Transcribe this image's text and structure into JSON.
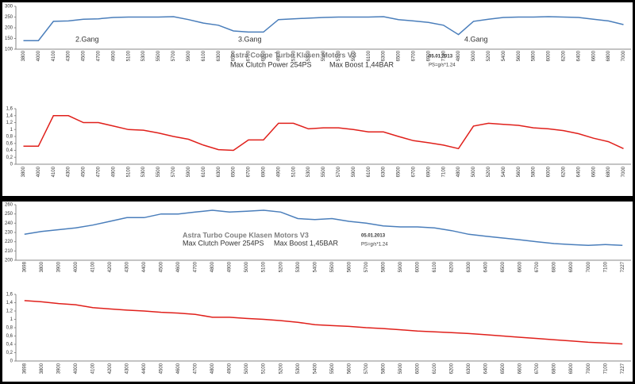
{
  "chart_data": [
    {
      "type": "line",
      "categories": [
        "3800",
        "4000",
        "4100",
        "4300",
        "4500",
        "4700",
        "4900",
        "5100",
        "5300",
        "5500",
        "5700",
        "5900",
        "6100",
        "6300",
        "6500",
        "6700",
        "6900",
        "4900",
        "5100",
        "5300",
        "5500",
        "5700",
        "5900",
        "6100",
        "6300",
        "6500",
        "6700",
        "6900",
        "7100",
        "4800",
        "5000",
        "5200",
        "5400",
        "5600",
        "5800",
        "6000",
        "6200",
        "6400",
        "6600",
        "6800",
        "7000"
      ],
      "series": [
        {
          "name": "Max Clutch Power 254PS",
          "color": "#4a7ebb",
          "values": [
            140,
            140,
            230,
            232,
            240,
            242,
            248,
            250,
            250,
            250,
            252,
            238,
            222,
            212,
            185,
            180,
            180,
            238,
            242,
            245,
            248,
            250,
            250,
            250,
            252,
            238,
            232,
            225,
            212,
            168,
            230,
            240,
            248,
            250,
            250,
            252,
            250,
            248,
            240,
            232,
            215
          ]
        }
      ],
      "ylim": [
        100,
        300
      ],
      "yticks": [
        100,
        150,
        200,
        250,
        300
      ],
      "annotations": [
        {
          "text": "2.Gang",
          "color": "#000000"
        },
        {
          "text": "3.Gang",
          "color": "#000000"
        },
        {
          "text": "4.Gang",
          "color": "#000000"
        },
        {
          "text": "Astra Coupe Turbo Klasen Motors V3",
          "color": "#7f7f7f"
        },
        {
          "text": "Max Boost 1,44BAR",
          "color": "#e0201b"
        },
        {
          "text": "05.01.2013",
          "color": "#000000"
        },
        {
          "text": "PS=g/s*1.24",
          "color": "#2030c0"
        }
      ]
    },
    {
      "type": "line",
      "categories": [
        "3800",
        "4000",
        "4100",
        "4300",
        "4500",
        "4700",
        "4900",
        "5100",
        "5300",
        "5500",
        "5700",
        "5900",
        "6100",
        "6300",
        "6500",
        "6700",
        "6900",
        "4900",
        "5100",
        "5300",
        "5500",
        "5700",
        "5900",
        "6100",
        "6300",
        "6500",
        "6700",
        "6900",
        "7100",
        "4800",
        "5000",
        "5200",
        "5400",
        "5600",
        "5800",
        "6000",
        "6200",
        "6400",
        "6600",
        "6800",
        "7000"
      ],
      "series": [
        {
          "name": "Boost",
          "color": "#e0201b",
          "values": [
            0.52,
            0.52,
            1.4,
            1.4,
            1.2,
            1.2,
            1.1,
            1.0,
            0.98,
            0.9,
            0.8,
            0.72,
            0.55,
            0.42,
            0.4,
            0.7,
            0.7,
            1.18,
            1.18,
            1.02,
            1.05,
            1.05,
            1.0,
            0.93,
            0.93,
            0.8,
            0.68,
            0.62,
            0.55,
            0.45,
            1.1,
            1.18,
            1.15,
            1.12,
            1.05,
            1.02,
            0.97,
            0.88,
            0.75,
            0.65,
            0.45
          ]
        }
      ],
      "ylim": [
        0,
        1.6
      ],
      "yticks": [
        0,
        {
          "value": 0.2,
          "label": "0,2"
        },
        {
          "value": 0.4,
          "label": "0,4"
        },
        {
          "value": 0.6,
          "label": "0,6"
        },
        {
          "value": 0.8,
          "label": "0,8"
        },
        1,
        {
          "value": 1.2,
          "label": "1,2"
        },
        {
          "value": 1.4,
          "label": "1,4"
        },
        {
          "value": 1.6,
          "label": "1,6"
        }
      ]
    },
    {
      "type": "line",
      "categories": [
        "3698",
        "3800",
        "3900",
        "4000",
        "4100",
        "4200",
        "4300",
        "4400",
        "4500",
        "4600",
        "4700",
        "4800",
        "4900",
        "5000",
        "5100",
        "5200",
        "5300",
        "5400",
        "5500",
        "5600",
        "5700",
        "5800",
        "5900",
        "6000",
        "6100",
        "6200",
        "6300",
        "6400",
        "6500",
        "6600",
        "6700",
        "6800",
        "6900",
        "7000",
        "7100",
        "7227"
      ],
      "series": [
        {
          "name": "Max Clutch Power 254PS",
          "color": "#4a7ebb",
          "values": [
            228,
            231,
            233,
            235,
            238,
            242,
            246,
            246,
            250,
            250,
            252,
            254,
            252,
            253,
            254,
            252,
            245,
            244,
            245,
            242,
            240,
            237,
            236,
            236,
            235,
            232,
            228,
            226,
            224,
            222,
            220,
            218,
            217,
            216,
            217,
            216
          ]
        }
      ],
      "ylim": [
        200,
        260
      ],
      "yticks": [
        200,
        210,
        220,
        230,
        240,
        250,
        260
      ],
      "annotations": [
        {
          "text": "Astra Turbo Coupe Klasen Motors V3",
          "color": "#7f7f7f"
        },
        {
          "text": "Max Boost 1,45BAR",
          "color": "#e0201b"
        },
        {
          "text": "05.01.2013",
          "color": "#000000"
        },
        {
          "text": "PS=g/s*1.24",
          "color": "#2030c0"
        }
      ]
    },
    {
      "type": "line",
      "categories": [
        "3698",
        "3800",
        "3900",
        "4000",
        "4100",
        "4200",
        "4300",
        "4400",
        "4500",
        "4600",
        "4700",
        "4800",
        "4900",
        "5000",
        "5100",
        "5200",
        "5300",
        "5400",
        "5500",
        "5600",
        "5700",
        "5800",
        "5900",
        "6000",
        "6100",
        "6200",
        "6300",
        "6400",
        "6500",
        "6600",
        "6700",
        "6800",
        "6900",
        "7000",
        "7100",
        "7227"
      ],
      "series": [
        {
          "name": "Boost",
          "color": "#e0201b",
          "values": [
            1.45,
            1.42,
            1.38,
            1.35,
            1.28,
            1.25,
            1.22,
            1.2,
            1.17,
            1.15,
            1.12,
            1.05,
            1.05,
            1.02,
            1.0,
            0.97,
            0.93,
            0.87,
            0.85,
            0.83,
            0.8,
            0.78,
            0.75,
            0.72,
            0.7,
            0.68,
            0.66,
            0.63,
            0.6,
            0.57,
            0.54,
            0.51,
            0.48,
            0.45,
            0.43,
            0.41
          ]
        }
      ],
      "ylim": [
        0,
        1.6
      ],
      "yticks": [
        0,
        {
          "value": 0.2,
          "label": "0,2"
        },
        {
          "value": 0.4,
          "label": "0,4"
        },
        {
          "value": 0.6,
          "label": "0,6"
        },
        {
          "value": 0.8,
          "label": "0,8"
        },
        1,
        {
          "value": 1.2,
          "label": "1,2"
        },
        {
          "value": 1.4,
          "label": "1,4"
        },
        {
          "value": 1.6,
          "label": "1,6"
        }
      ]
    }
  ]
}
